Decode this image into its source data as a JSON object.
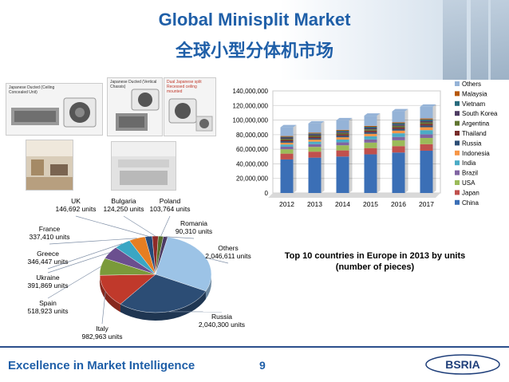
{
  "header": {
    "title_en": "Global Minisplit Market",
    "title_zh": "全球小型分体机市场"
  },
  "photos": {
    "caption1": "Japanese Ducted (Ceiling Concealed Unit)",
    "caption2": "Japanese Ducted (Vertical Chassis)",
    "caption3": "Dual Japanese split Recessed ceiling mounted"
  },
  "footer": {
    "tagline": "Excellence in Market Intelligence",
    "page_number": "9",
    "logo_text": "BSRIA"
  },
  "pie_note": {
    "line1": "Top 10 countries in Europe in 2013 by units",
    "line2": "(number of pieces)"
  },
  "colors": {
    "title": "#1f5fa8",
    "footer_rule": "#2b4f8c"
  },
  "chart_data": [
    {
      "type": "bar",
      "stacked": true,
      "categories": [
        "2012",
        "2013",
        "2014",
        "2015",
        "2016",
        "2017"
      ],
      "y_ticks": [
        "0",
        "20,000,000",
        "40,000,000",
        "60,000,000",
        "80,000,000",
        "100,000,000",
        "120,000,000",
        "140,000,000"
      ],
      "ylim": [
        0,
        140000000
      ],
      "legend_position": "right",
      "series": [
        {
          "name": "China",
          "color": "#3b6fb6",
          "values": [
            46000000,
            48500000,
            50000000,
            53000000,
            55500000,
            58000000
          ]
        },
        {
          "name": "Japan",
          "color": "#c0504d",
          "values": [
            8000000,
            8200000,
            8400000,
            8600000,
            8800000,
            9000000
          ]
        },
        {
          "name": "USA",
          "color": "#9bbb59",
          "values": [
            6000000,
            6500000,
            7000000,
            7500000,
            8000000,
            8500000
          ]
        },
        {
          "name": "Brazil",
          "color": "#8064a2",
          "values": [
            3500000,
            3800000,
            4000000,
            4300000,
            4600000,
            5000000
          ]
        },
        {
          "name": "India",
          "color": "#4bacc6",
          "values": [
            3000000,
            3400000,
            3900000,
            4400000,
            5000000,
            5700000
          ]
        },
        {
          "name": "Indonesia",
          "color": "#f79646",
          "values": [
            2500000,
            2800000,
            3100000,
            3400000,
            3700000,
            4000000
          ]
        },
        {
          "name": "Russia",
          "color": "#2c4d75",
          "values": [
            2000000,
            2040300,
            2100000,
            2200000,
            2300000,
            2400000
          ]
        },
        {
          "name": "Thailand",
          "color": "#772c2a",
          "values": [
            1800000,
            1900000,
            2000000,
            2100000,
            2200000,
            2300000
          ]
        },
        {
          "name": "Argentina",
          "color": "#5f7530",
          "values": [
            1500000,
            1600000,
            1700000,
            1800000,
            1900000,
            2000000
          ]
        },
        {
          "name": "South Korea",
          "color": "#4d3b62",
          "values": [
            1700000,
            1750000,
            1800000,
            1850000,
            1900000,
            1950000
          ]
        },
        {
          "name": "Vietnam",
          "color": "#276a7c",
          "values": [
            1000000,
            1200000,
            1400000,
            1600000,
            1800000,
            2000000
          ]
        },
        {
          "name": "Malaysia",
          "color": "#b65708",
          "values": [
            1100000,
            1150000,
            1200000,
            1250000,
            1300000,
            1350000
          ]
        },
        {
          "name": "Others",
          "color": "#95b3d7",
          "values": [
            12000000,
            12500000,
            13000000,
            14000000,
            15000000,
            16000000
          ]
        }
      ]
    },
    {
      "type": "pie",
      "title": "Top 10 countries in Europe in 2013 by units",
      "slices": [
        {
          "label": "Russia",
          "value": 2040300,
          "text": "2,040,300 units",
          "color": "#2c4d75"
        },
        {
          "label": "Italy",
          "value": 982963,
          "text": "982,963 units",
          "color": "#c0392b"
        },
        {
          "label": "Spain",
          "value": 518923,
          "text": "518,923 units",
          "color": "#7a9a3a"
        },
        {
          "label": "Ukraine",
          "value": 391869,
          "text": "391,869 units",
          "color": "#6b4f8f"
        },
        {
          "label": "Greece",
          "value": 346447,
          "text": "346,447 units",
          "color": "#3aa6c4"
        },
        {
          "label": "France",
          "value": 337410,
          "text": "337,410 units",
          "color": "#e67e22"
        },
        {
          "label": "UK",
          "value": 146692,
          "text": "146,692 units",
          "color": "#244a7a"
        },
        {
          "label": "Bulgaria",
          "value": 124250,
          "text": "124,250 units",
          "color": "#8e2b28"
        },
        {
          "label": "Poland",
          "value": 103764,
          "text": "103,764 units",
          "color": "#57702b"
        },
        {
          "label": "Romania",
          "value": 90310,
          "text": "90,310 units",
          "color": "#4b3a63"
        },
        {
          "label": "Others",
          "value": 2046611,
          "text": "2,046,611 units",
          "color": "#9cc3e6"
        }
      ]
    }
  ]
}
